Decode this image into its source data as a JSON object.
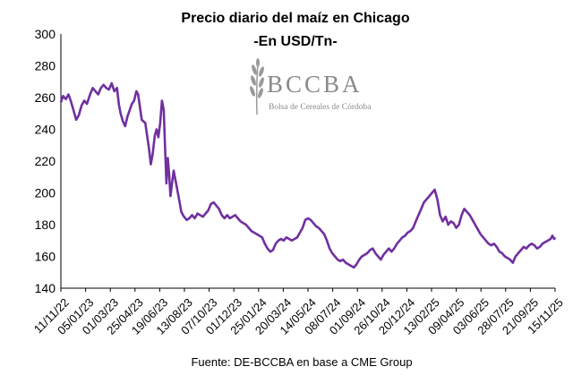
{
  "chart_data": {
    "type": "line",
    "title": "Precio diario del maíz en Chicago",
    "subtitle": "-En USD/Tn-",
    "source": "Fuente: DE-BCCBA en base a CME Group",
    "ylim": [
      140,
      300
    ],
    "yticks": [
      140,
      160,
      180,
      200,
      220,
      240,
      260,
      280,
      300
    ],
    "xlim": [
      "2022-11-11",
      "2025-11-15"
    ],
    "xtick_labels": [
      "11/11/22",
      "05/01/23",
      "01/03/23",
      "25/04/23",
      "19/06/23",
      "13/08/23",
      "07/10/23",
      "01/12/23",
      "25/01/24",
      "20/03/24",
      "14/05/24",
      "08/07/24",
      "01/09/24",
      "26/10/24",
      "20/12/24",
      "13/02/25",
      "09/04/25",
      "03/06/25",
      "28/07/25",
      "21/09/25",
      "15/11/25"
    ],
    "grid": false,
    "line_color": "#7030A0",
    "series": [
      {
        "name": "",
        "points": [
          [
            "2022-11-11",
            257
          ],
          [
            "2022-11-16",
            261
          ],
          [
            "2022-11-22",
            259
          ],
          [
            "2022-11-28",
            262
          ],
          [
            "2022-12-03",
            258
          ],
          [
            "2022-12-09",
            252
          ],
          [
            "2022-12-15",
            246
          ],
          [
            "2022-12-21",
            249
          ],
          [
            "2022-12-27",
            255
          ],
          [
            "2023-01-02",
            258
          ],
          [
            "2023-01-08",
            256
          ],
          [
            "2023-01-15",
            262
          ],
          [
            "2023-01-21",
            266
          ],
          [
            "2023-01-27",
            264
          ],
          [
            "2023-02-02",
            262
          ],
          [
            "2023-02-08",
            266
          ],
          [
            "2023-02-14",
            268
          ],
          [
            "2023-02-20",
            266
          ],
          [
            "2023-02-26",
            265
          ],
          [
            "2023-03-04",
            269
          ],
          [
            "2023-03-10",
            264
          ],
          [
            "2023-03-16",
            266
          ],
          [
            "2023-03-20",
            256
          ],
          [
            "2023-03-24",
            250
          ],
          [
            "2023-03-29",
            245
          ],
          [
            "2023-04-03",
            242
          ],
          [
            "2023-04-08",
            248
          ],
          [
            "2023-04-13",
            252
          ],
          [
            "2023-04-18",
            256
          ],
          [
            "2023-04-23",
            258
          ],
          [
            "2023-04-28",
            264
          ],
          [
            "2023-05-02",
            262
          ],
          [
            "2023-05-06",
            254
          ],
          [
            "2023-05-10",
            246
          ],
          [
            "2023-05-14",
            245
          ],
          [
            "2023-05-18",
            244
          ],
          [
            "2023-05-22",
            236
          ],
          [
            "2023-05-26",
            228
          ],
          [
            "2023-05-30",
            218
          ],
          [
            "2023-06-03",
            224
          ],
          [
            "2023-06-08",
            236
          ],
          [
            "2023-06-12",
            240
          ],
          [
            "2023-06-16",
            235
          ],
          [
            "2023-06-20",
            244
          ],
          [
            "2023-06-24",
            258
          ],
          [
            "2023-06-28",
            252
          ],
          [
            "2023-07-01",
            228
          ],
          [
            "2023-07-04",
            206
          ],
          [
            "2023-07-07",
            222
          ],
          [
            "2023-07-10",
            212
          ],
          [
            "2023-07-13",
            198
          ],
          [
            "2023-07-16",
            205
          ],
          [
            "2023-07-20",
            214
          ],
          [
            "2023-07-24",
            208
          ],
          [
            "2023-07-28",
            202
          ],
          [
            "2023-08-01",
            196
          ],
          [
            "2023-08-06",
            188
          ],
          [
            "2023-08-12",
            185
          ],
          [
            "2023-08-18",
            183
          ],
          [
            "2023-08-24",
            184
          ],
          [
            "2023-08-30",
            186
          ],
          [
            "2023-09-05",
            184
          ],
          [
            "2023-09-11",
            187
          ],
          [
            "2023-09-17",
            186
          ],
          [
            "2023-09-23",
            185
          ],
          [
            "2023-09-29",
            187
          ],
          [
            "2023-10-05",
            189
          ],
          [
            "2023-10-11",
            193
          ],
          [
            "2023-10-17",
            194
          ],
          [
            "2023-10-23",
            192
          ],
          [
            "2023-10-29",
            190
          ],
          [
            "2023-11-04",
            186
          ],
          [
            "2023-11-10",
            184
          ],
          [
            "2023-11-16",
            186
          ],
          [
            "2023-11-22",
            184
          ],
          [
            "2023-11-28",
            185
          ],
          [
            "2023-12-04",
            186
          ],
          [
            "2023-12-10",
            184
          ],
          [
            "2023-12-16",
            182
          ],
          [
            "2023-12-22",
            181
          ],
          [
            "2023-12-28",
            180
          ],
          [
            "2024-01-03",
            178
          ],
          [
            "2024-01-09",
            176
          ],
          [
            "2024-01-15",
            175
          ],
          [
            "2024-01-21",
            174
          ],
          [
            "2024-01-27",
            173
          ],
          [
            "2024-02-02",
            172
          ],
          [
            "2024-02-08",
            168
          ],
          [
            "2024-02-14",
            165
          ],
          [
            "2024-02-20",
            163
          ],
          [
            "2024-02-26",
            164
          ],
          [
            "2024-03-03",
            168
          ],
          [
            "2024-03-09",
            170
          ],
          [
            "2024-03-15",
            171
          ],
          [
            "2024-03-21",
            170
          ],
          [
            "2024-03-27",
            172
          ],
          [
            "2024-04-02",
            171
          ],
          [
            "2024-04-08",
            170
          ],
          [
            "2024-04-14",
            171
          ],
          [
            "2024-04-20",
            172
          ],
          [
            "2024-04-26",
            175
          ],
          [
            "2024-05-02",
            178
          ],
          [
            "2024-05-08",
            183
          ],
          [
            "2024-05-14",
            184
          ],
          [
            "2024-05-20",
            183
          ],
          [
            "2024-05-26",
            181
          ],
          [
            "2024-06-01",
            179
          ],
          [
            "2024-06-07",
            178
          ],
          [
            "2024-06-13",
            176
          ],
          [
            "2024-06-19",
            174
          ],
          [
            "2024-06-25",
            170
          ],
          [
            "2024-07-01",
            165
          ],
          [
            "2024-07-07",
            162
          ],
          [
            "2024-07-13",
            160
          ],
          [
            "2024-07-19",
            158
          ],
          [
            "2024-07-25",
            157
          ],
          [
            "2024-07-31",
            158
          ],
          [
            "2024-08-06",
            156
          ],
          [
            "2024-08-12",
            155
          ],
          [
            "2024-08-18",
            154
          ],
          [
            "2024-08-24",
            153
          ],
          [
            "2024-08-30",
            155
          ],
          [
            "2024-09-05",
            158
          ],
          [
            "2024-09-11",
            160
          ],
          [
            "2024-09-17",
            161
          ],
          [
            "2024-09-23",
            162
          ],
          [
            "2024-09-29",
            164
          ],
          [
            "2024-10-05",
            165
          ],
          [
            "2024-10-11",
            162
          ],
          [
            "2024-10-17",
            160
          ],
          [
            "2024-10-23",
            158
          ],
          [
            "2024-10-29",
            161
          ],
          [
            "2024-11-04",
            163
          ],
          [
            "2024-11-10",
            165
          ],
          [
            "2024-11-16",
            163
          ],
          [
            "2024-11-22",
            165
          ],
          [
            "2024-11-28",
            168
          ],
          [
            "2024-12-04",
            170
          ],
          [
            "2024-12-10",
            172
          ],
          [
            "2024-12-16",
            173
          ],
          [
            "2024-12-22",
            175
          ],
          [
            "2024-12-28",
            176
          ],
          [
            "2025-01-03",
            178
          ],
          [
            "2025-01-09",
            182
          ],
          [
            "2025-01-15",
            186
          ],
          [
            "2025-01-21",
            190
          ],
          [
            "2025-01-27",
            194
          ],
          [
            "2025-02-02",
            196
          ],
          [
            "2025-02-08",
            198
          ],
          [
            "2025-02-14",
            200
          ],
          [
            "2025-02-20",
            202
          ],
          [
            "2025-02-26",
            196
          ],
          [
            "2025-03-04",
            186
          ],
          [
            "2025-03-10",
            182
          ],
          [
            "2025-03-16",
            185
          ],
          [
            "2025-03-22",
            180
          ],
          [
            "2025-03-28",
            182
          ],
          [
            "2025-04-03",
            181
          ],
          [
            "2025-04-09",
            178
          ],
          [
            "2025-04-15",
            180
          ],
          [
            "2025-04-21",
            186
          ],
          [
            "2025-04-27",
            190
          ],
          [
            "2025-05-03",
            188
          ],
          [
            "2025-05-09",
            186
          ],
          [
            "2025-05-15",
            183
          ],
          [
            "2025-05-21",
            180
          ],
          [
            "2025-05-27",
            177
          ],
          [
            "2025-06-02",
            174
          ],
          [
            "2025-06-08",
            172
          ],
          [
            "2025-06-14",
            170
          ],
          [
            "2025-06-20",
            168
          ],
          [
            "2025-06-26",
            167
          ],
          [
            "2025-07-02",
            168
          ],
          [
            "2025-07-08",
            166
          ],
          [
            "2025-07-14",
            163
          ],
          [
            "2025-07-20",
            162
          ],
          [
            "2025-07-26",
            160
          ],
          [
            "2025-08-01",
            159
          ],
          [
            "2025-08-07",
            158
          ],
          [
            "2025-08-13",
            156
          ],
          [
            "2025-08-19",
            160
          ],
          [
            "2025-08-25",
            162
          ],
          [
            "2025-08-31",
            164
          ],
          [
            "2025-09-06",
            166
          ],
          [
            "2025-09-12",
            165
          ],
          [
            "2025-09-18",
            167
          ],
          [
            "2025-09-24",
            168
          ],
          [
            "2025-09-30",
            167
          ],
          [
            "2025-10-06",
            165
          ],
          [
            "2025-10-12",
            166
          ],
          [
            "2025-10-18",
            168
          ],
          [
            "2025-10-24",
            169
          ],
          [
            "2025-10-30",
            170
          ],
          [
            "2025-11-05",
            171
          ],
          [
            "2025-11-09",
            173
          ],
          [
            "2025-11-13",
            171
          ],
          [
            "2025-11-15",
            172
          ]
        ]
      }
    ]
  },
  "logo": {
    "name": "BCCBA",
    "subtitle": "Bolsa de Cereales de Córdoba",
    "color": "#8a8a8a",
    "icon": "wheat-icon"
  }
}
